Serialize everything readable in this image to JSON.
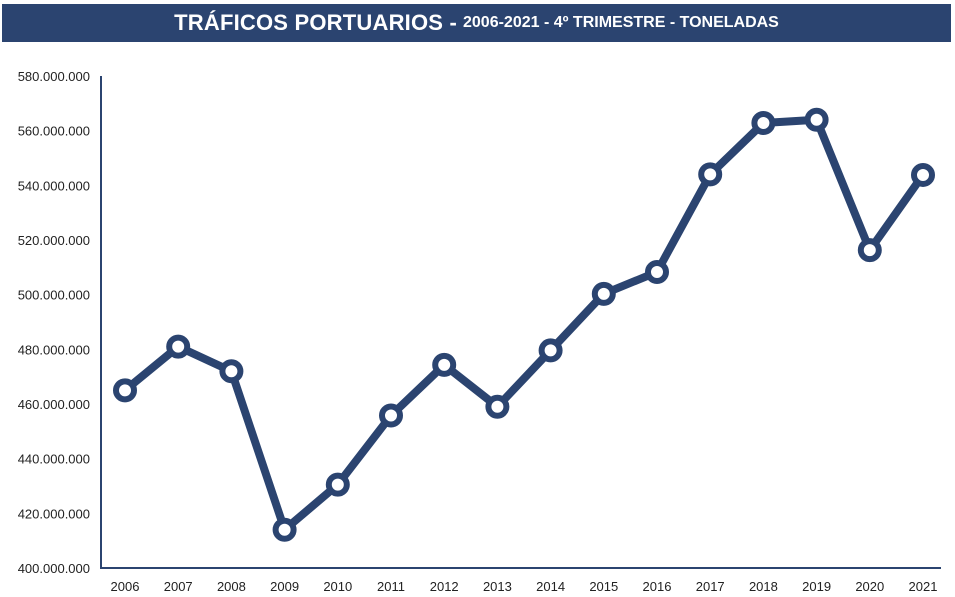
{
  "chart_data": {
    "type": "line",
    "title": "TRÁFICOS PORTUARIOS -",
    "subtitle": "2006-2021 - 4º TRIMESTRE - TONELADAS",
    "xlabel": "",
    "ylabel": "",
    "categories": [
      "2006",
      "2007",
      "2008",
      "2009",
      "2010",
      "2011",
      "2012",
      "2013",
      "2014",
      "2015",
      "2016",
      "2017",
      "2018",
      "2019",
      "2020",
      "2021"
    ],
    "values": [
      465000000,
      481000000,
      472000000,
      414000000,
      430500000,
      455800000,
      474300000,
      459000000,
      479600000,
      500300000,
      508300000,
      544000000,
      562800000,
      564000000,
      516300000,
      543800000
    ],
    "ylim": [
      400000000,
      580000000
    ],
    "yticks": [
      "400.000.000",
      "420.000.000",
      "440.000.000",
      "460.000.000",
      "480.000.000",
      "500.000.000",
      "520.000.000",
      "540.000.000",
      "560.000.000",
      "580.000.000"
    ],
    "grid": false,
    "colors": {
      "line": "#2b4470",
      "marker_fill": "#ffffff",
      "title_bg": "#2b4470"
    }
  }
}
